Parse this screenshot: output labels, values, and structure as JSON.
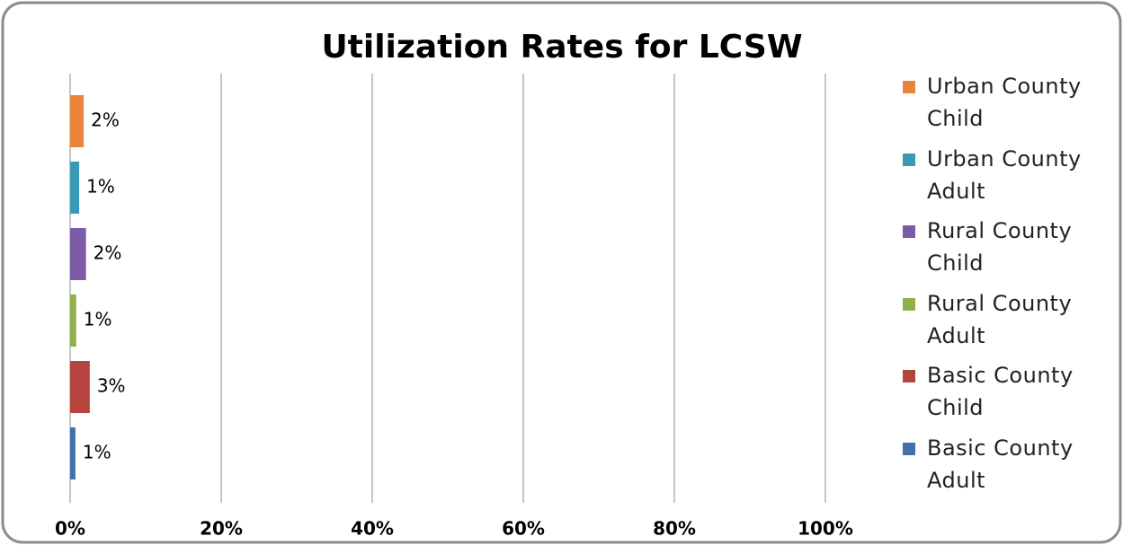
{
  "chart_data": {
    "type": "bar",
    "orientation": "horizontal",
    "title": "Utilization Rates for LCSW",
    "series": [
      {
        "name": "Urban County Child",
        "color": "#e8853a",
        "values": [
          1.8
        ],
        "value_labels": [
          "2%"
        ]
      },
      {
        "name": "Urban County Adult",
        "color": "#3a9ab5",
        "values": [
          1.2
        ],
        "value_labels": [
          "1%"
        ]
      },
      {
        "name": "Rural County Child",
        "color": "#7c5ba6",
        "values": [
          2.1
        ],
        "value_labels": [
          "2%"
        ]
      },
      {
        "name": "Rural County Adult",
        "color": "#8fb04a",
        "values": [
          0.8
        ],
        "value_labels": [
          "1%"
        ]
      },
      {
        "name": "Basic County Child",
        "color": "#b5443f",
        "values": [
          2.6
        ],
        "value_labels": [
          "3%"
        ]
      },
      {
        "name": "Basic County Adult",
        "color": "#4370ad",
        "values": [
          0.7
        ],
        "value_labels": [
          "1%"
        ]
      }
    ],
    "xlim": [
      0,
      100
    ],
    "xticks": [
      {
        "value": 0,
        "label": "0%"
      },
      {
        "value": 20,
        "label": "20%"
      },
      {
        "value": 40,
        "label": "40%"
      },
      {
        "value": 60,
        "label": "60%"
      },
      {
        "value": 80,
        "label": "80%"
      },
      {
        "value": 100,
        "label": "100%"
      }
    ],
    "grid": true,
    "legend": "right"
  }
}
